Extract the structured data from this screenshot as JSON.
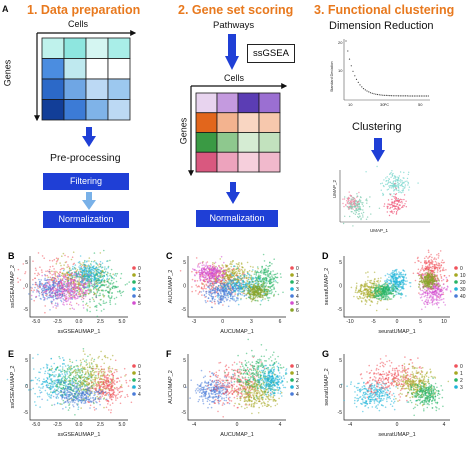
{
  "figure": {
    "panel_a": "A",
    "steps": [
      {
        "title": "1. Data preparation"
      },
      {
        "title": "2. Gene set scoring"
      },
      {
        "title": "3. Functional clustering"
      }
    ],
    "step1": {
      "cells_label": "Cells",
      "genes_label": "Genes",
      "preprocessing": "Pre-processing",
      "filtering": "Filtering",
      "normalization": "Normalization"
    },
    "step2": {
      "pathways": "Pathways",
      "ssgsea": "ssGSEA",
      "cells_label": "Cells",
      "genes_label": "Genes",
      "normalization": "Normalization"
    },
    "step3": {
      "dimred": "Dimension Reduction",
      "clustering": "Clustering",
      "elbow_ylabel": "Standard Deviation",
      "elbow_xlabel": "PC",
      "umap_x": "UMAP_1",
      "umap_y": "UMAP_2"
    },
    "panels": [
      {
        "letter": "B",
        "xlabel": "ssGSEAUMAP_1",
        "ylabel": "ssGSEAUMAP_2",
        "xticks": [
          "-5.0",
          "-2.5",
          "0.0",
          "2.5",
          "5.0"
        ],
        "yticks": [
          "5",
          "0",
          "-5"
        ],
        "legend": [
          "0",
          "1",
          "2",
          "3",
          "4",
          "5"
        ]
      },
      {
        "letter": "C",
        "xlabel": "AUCUMAP_1",
        "ylabel": "AUCUMAP_2",
        "xticks": [
          "-3",
          "0",
          "3",
          "6"
        ],
        "yticks": [
          "5",
          "0",
          "-5"
        ],
        "legend": [
          "0",
          "1",
          "2",
          "3",
          "4",
          "5",
          "6"
        ]
      },
      {
        "letter": "D",
        "xlabel": "seuratUMAP_1",
        "ylabel": "seuratUMAP_2",
        "xticks": [
          "-10",
          "-5",
          "0",
          "5",
          "10"
        ],
        "yticks": [
          "5",
          "0",
          "-5"
        ],
        "legend": [
          "0",
          "10",
          "20",
          "30",
          "40"
        ]
      },
      {
        "letter": "E",
        "xlabel": "ssGSEAUMAP_1",
        "ylabel": "ssGSEAUMAP_2",
        "xticks": [
          "-5.0",
          "-2.5",
          "0.0",
          "2.5",
          "5.0"
        ],
        "yticks": [
          "5",
          "0",
          "-5"
        ],
        "legend": [
          "0",
          "1",
          "2",
          "3",
          "4"
        ]
      },
      {
        "letter": "F",
        "xlabel": "AUCUMAP_1",
        "ylabel": "AUCUMAP_2",
        "xticks": [
          "-4",
          "0",
          "4"
        ],
        "yticks": [
          "5",
          "0",
          "-5"
        ],
        "legend": [
          "0",
          "1",
          "2",
          "3",
          "4"
        ]
      },
      {
        "letter": "G",
        "xlabel": "seuratUMAP_1",
        "ylabel": "seuratUMAP_2",
        "xticks": [
          "-4",
          "0",
          "4"
        ],
        "yticks": [
          "5",
          "0",
          "-5"
        ],
        "legend": [
          "0",
          "1",
          "2",
          "3"
        ]
      }
    ],
    "colors": {
      "accent_orange": "#e8791e",
      "arrow_blue": "#1f3fd6",
      "clusters": [
        "#f0525b",
        "#a5a821",
        "#27b466",
        "#1fb5d8",
        "#4a7bd8",
        "#d34fd0",
        "#8aa42a"
      ]
    }
  }
}
